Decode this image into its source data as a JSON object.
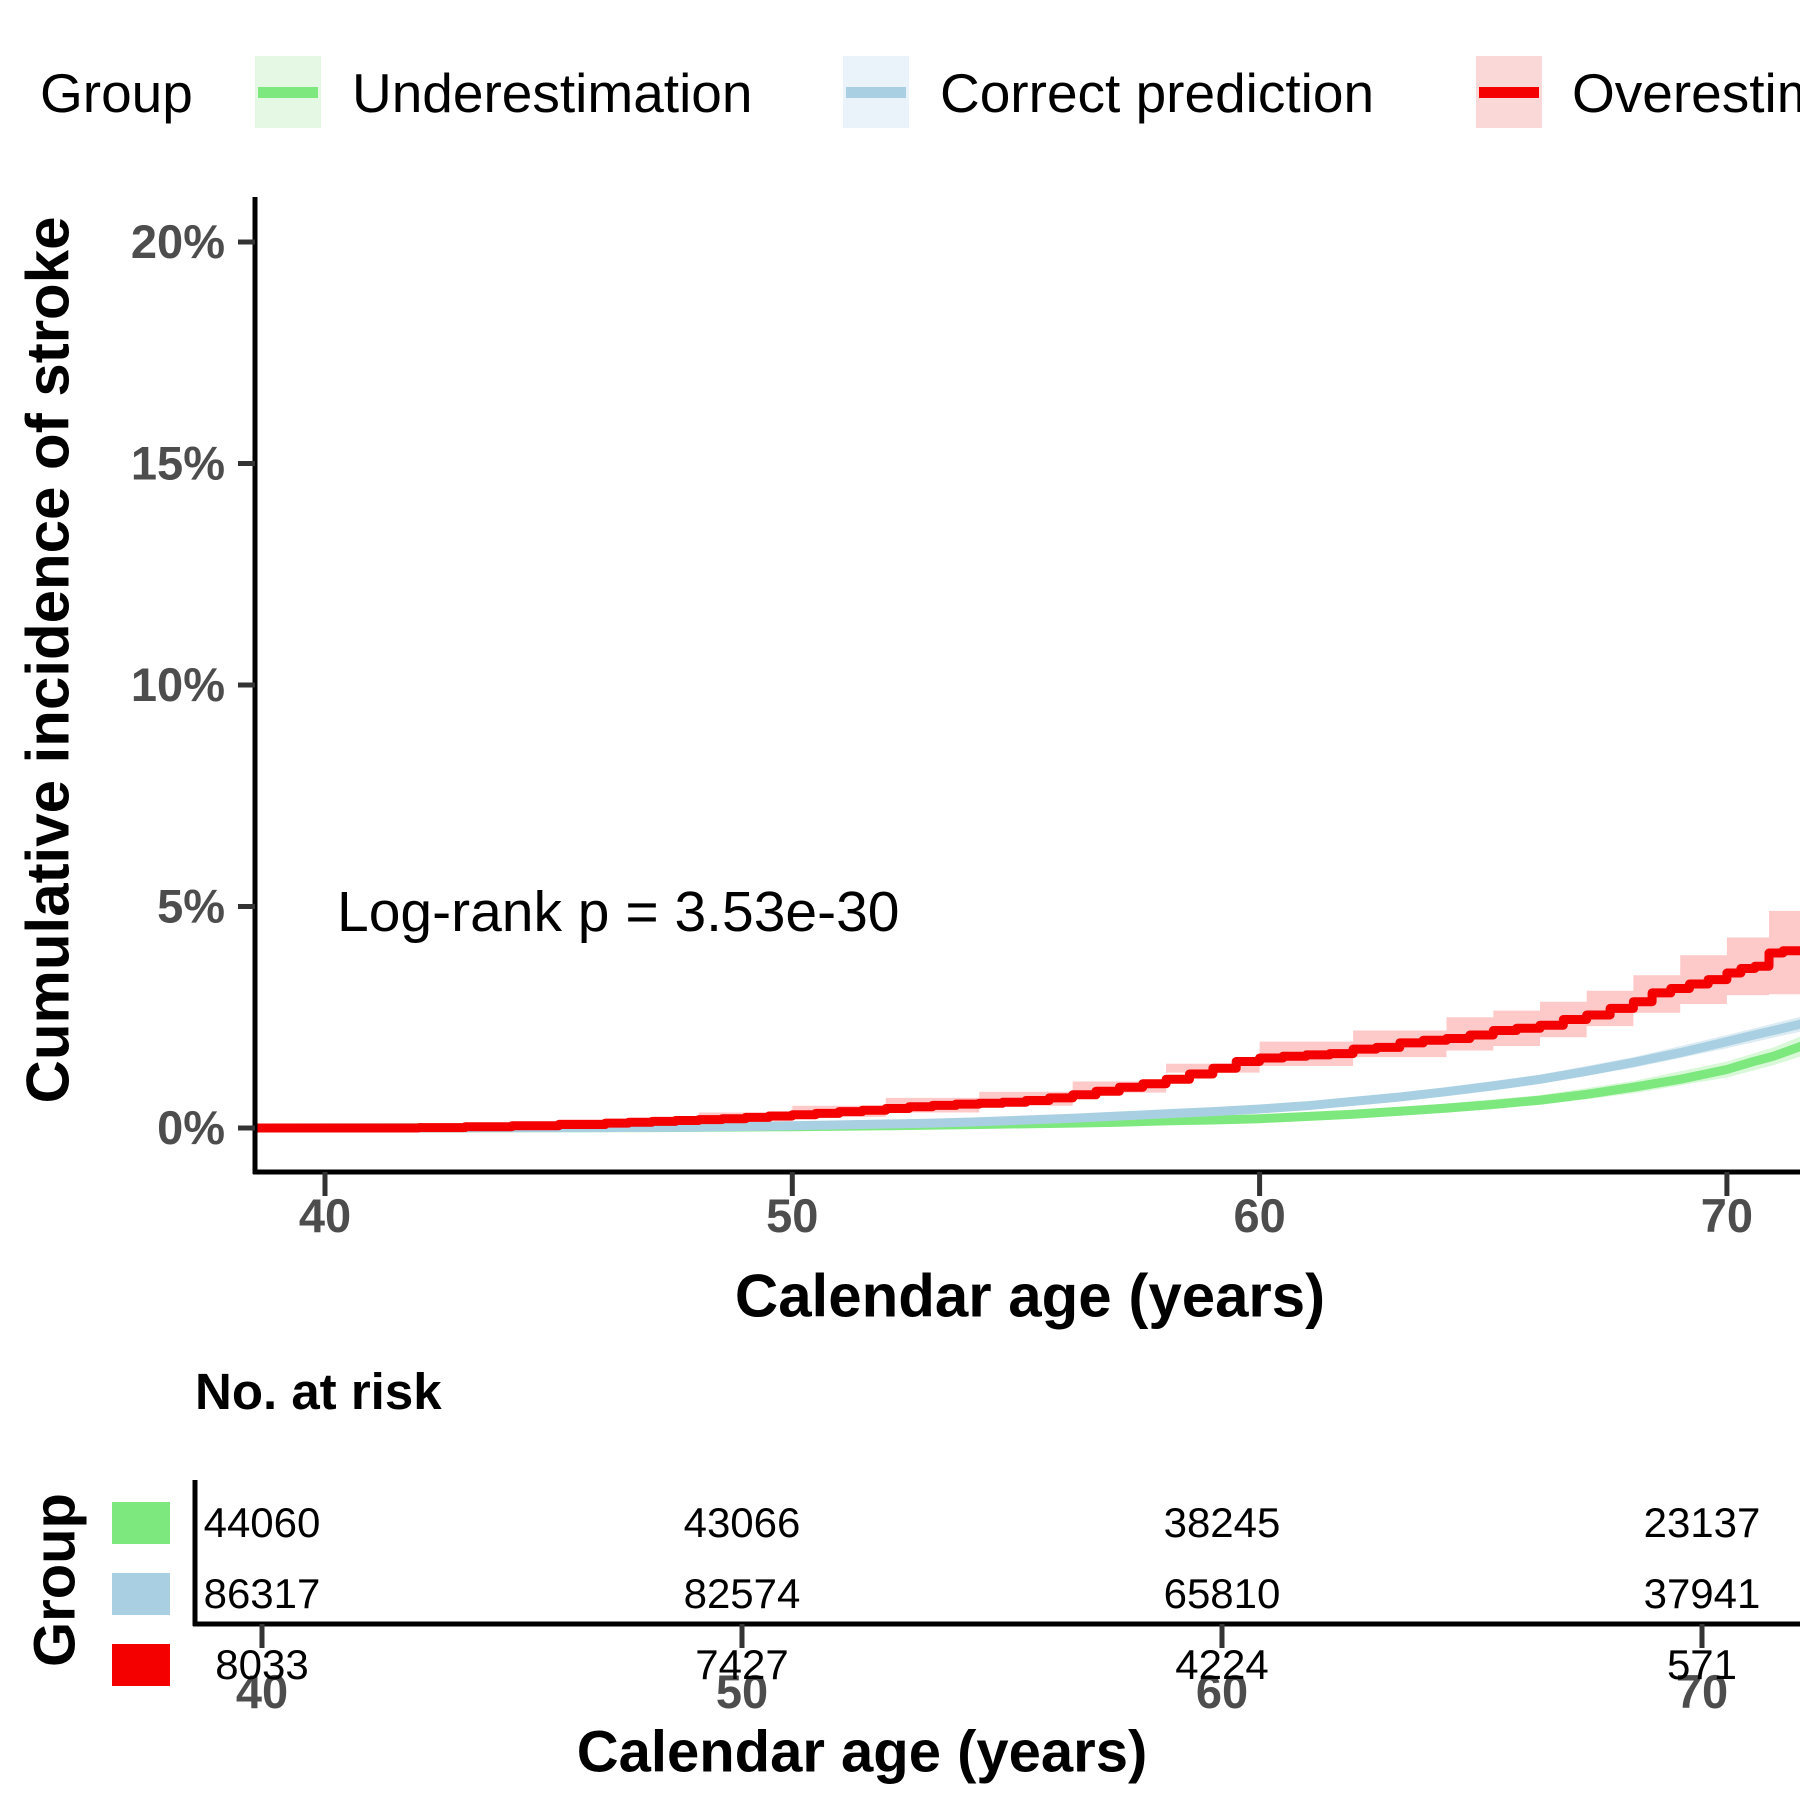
{
  "legend": {
    "title": "Group",
    "items": [
      {
        "id": "underestimation",
        "label": "Underestimation",
        "color": "#7DE87D",
        "bg": "#E4F8E4"
      },
      {
        "id": "correct-prediction",
        "label": "Correct prediction",
        "color": "#A9D0E2",
        "bg": "#EAF3F9"
      },
      {
        "id": "overestimation",
        "label": "Overestimation",
        "color": "#F40000",
        "bg": "#FBD8D8"
      }
    ]
  },
  "chart": {
    "y_title": "Cumulative incidence of stroke",
    "x_title": "Calendar age (years)",
    "annotation": "Log-rank p = 3.53e-30"
  },
  "chart_data": {
    "type": "line",
    "title": "",
    "xlabel": "Calendar age (years)",
    "ylabel": "Cumulative incidence of stroke",
    "x_range": [
      38.5,
      71.6
    ],
    "y_range_pct": [
      0,
      21
    ],
    "grid": false,
    "legend_position": "top",
    "annotation": "Log-rank p = 3.53e-30",
    "y_ticks": [
      {
        "label": "0%",
        "value": 0
      },
      {
        "label": "5%",
        "value": 5
      },
      {
        "label": "10%",
        "value": 10
      },
      {
        "label": "15%",
        "value": 15
      },
      {
        "label": "20%",
        "value": 20
      }
    ],
    "x_ticks": [
      {
        "label": "40",
        "value": 40
      },
      {
        "label": "50",
        "value": 50
      },
      {
        "label": "60",
        "value": 60
      },
      {
        "label": "70",
        "value": 70
      }
    ],
    "series": [
      {
        "name": "Underestimation",
        "color": "#7DE87D",
        "band_color": "rgba(125,232,125,0.30)",
        "step": false,
        "points": [
          [
            38.5,
            0
          ],
          [
            47,
            0.01
          ],
          [
            50,
            0.03
          ],
          [
            52,
            0.05
          ],
          [
            54,
            0.08
          ],
          [
            56,
            0.11
          ],
          [
            57,
            0.13
          ],
          [
            58,
            0.16
          ],
          [
            59,
            0.18
          ],
          [
            60,
            0.21
          ],
          [
            61,
            0.26
          ],
          [
            62,
            0.31
          ],
          [
            63,
            0.38
          ],
          [
            64,
            0.45
          ],
          [
            65,
            0.53
          ],
          [
            66,
            0.63
          ],
          [
            67,
            0.76
          ],
          [
            68,
            0.92
          ],
          [
            69,
            1.1
          ],
          [
            70,
            1.32
          ],
          [
            70.5,
            1.48
          ],
          [
            71,
            1.62
          ],
          [
            71.6,
            1.85
          ]
        ],
        "band": [
          [
            60,
            0.15,
            0.27
          ],
          [
            63,
            0.3,
            0.46
          ],
          [
            66,
            0.52,
            0.74
          ],
          [
            68,
            0.78,
            1.06
          ],
          [
            70,
            1.14,
            1.5
          ],
          [
            71,
            1.42,
            1.82
          ],
          [
            71.6,
            1.62,
            2.08
          ]
        ]
      },
      {
        "name": "Correct prediction",
        "color": "#A9D0E2",
        "band_color": "rgba(169,208,226,0.40)",
        "step": false,
        "points": [
          [
            38.5,
            0
          ],
          [
            46,
            0.01
          ],
          [
            48,
            0.02
          ],
          [
            50,
            0.05
          ],
          [
            51,
            0.07
          ],
          [
            52,
            0.09
          ],
          [
            53,
            0.11
          ],
          [
            54,
            0.14
          ],
          [
            55,
            0.18
          ],
          [
            56,
            0.22
          ],
          [
            57,
            0.27
          ],
          [
            58,
            0.32
          ],
          [
            59,
            0.37
          ],
          [
            60,
            0.43
          ],
          [
            61,
            0.5
          ],
          [
            62,
            0.6
          ],
          [
            63,
            0.7
          ],
          [
            64,
            0.82
          ],
          [
            65,
            0.95
          ],
          [
            66,
            1.1
          ],
          [
            67,
            1.28
          ],
          [
            68,
            1.48
          ],
          [
            69,
            1.7
          ],
          [
            70,
            1.95
          ],
          [
            70.5,
            2.08
          ],
          [
            71,
            2.2
          ],
          [
            71.6,
            2.35
          ]
        ],
        "band": [
          [
            60,
            0.37,
            0.49
          ],
          [
            63,
            0.62,
            0.78
          ],
          [
            66,
            1.0,
            1.2
          ],
          [
            68,
            1.36,
            1.6
          ],
          [
            70,
            1.8,
            2.1
          ],
          [
            71,
            2.04,
            2.36
          ],
          [
            71.6,
            2.18,
            2.52
          ]
        ]
      },
      {
        "name": "Overestimation",
        "color": "#F40000",
        "band_color": "rgba(244,0,0,0.21)",
        "step": true,
        "points": [
          [
            38.5,
            0
          ],
          [
            42,
            0.01
          ],
          [
            43,
            0.03
          ],
          [
            44,
            0.05
          ],
          [
            45,
            0.08
          ],
          [
            46,
            0.11
          ],
          [
            46.5,
            0.13
          ],
          [
            47,
            0.15
          ],
          [
            47.5,
            0.17
          ],
          [
            48,
            0.19
          ],
          [
            48.5,
            0.21
          ],
          [
            49,
            0.24
          ],
          [
            49.5,
            0.27
          ],
          [
            50,
            0.3
          ],
          [
            50.5,
            0.33
          ],
          [
            51,
            0.37
          ],
          [
            51.5,
            0.4
          ],
          [
            52,
            0.44
          ],
          [
            52.5,
            0.48
          ],
          [
            53,
            0.51
          ],
          [
            53.5,
            0.54
          ],
          [
            54,
            0.56
          ],
          [
            54.5,
            0.58
          ],
          [
            55,
            0.62
          ],
          [
            55.5,
            0.68
          ],
          [
            56,
            0.75
          ],
          [
            56.5,
            0.83
          ],
          [
            57,
            0.92
          ],
          [
            57.5,
            1.0
          ],
          [
            58,
            1.1
          ],
          [
            58.5,
            1.22
          ],
          [
            59,
            1.35
          ],
          [
            59.5,
            1.5
          ],
          [
            60,
            1.58
          ],
          [
            60.5,
            1.62
          ],
          [
            61,
            1.65
          ],
          [
            61.5,
            1.68
          ],
          [
            62,
            1.78
          ],
          [
            62.5,
            1.82
          ],
          [
            63,
            1.92
          ],
          [
            63.5,
            1.98
          ],
          [
            64,
            2.02
          ],
          [
            64.5,
            2.1
          ],
          [
            65,
            2.2
          ],
          [
            65.5,
            2.25
          ],
          [
            66,
            2.32
          ],
          [
            66.5,
            2.45
          ],
          [
            67,
            2.55
          ],
          [
            67.5,
            2.7
          ],
          [
            68,
            2.85
          ],
          [
            68.4,
            3.05
          ],
          [
            68.8,
            3.15
          ],
          [
            69.2,
            3.25
          ],
          [
            69.6,
            3.35
          ],
          [
            70,
            3.5
          ],
          [
            70.3,
            3.6
          ],
          [
            70.6,
            3.65
          ],
          [
            70.9,
            3.95
          ],
          [
            71.2,
            4.0
          ],
          [
            71.6,
            4.08
          ]
        ],
        "band": [
          [
            43,
            0.0,
            0.09
          ],
          [
            45,
            0.02,
            0.2
          ],
          [
            48,
            0.08,
            0.35
          ],
          [
            50,
            0.15,
            0.5
          ],
          [
            52,
            0.25,
            0.68
          ],
          [
            54,
            0.35,
            0.82
          ],
          [
            56,
            0.5,
            1.05
          ],
          [
            58,
            0.8,
            1.45
          ],
          [
            60,
            1.25,
            1.95
          ],
          [
            62,
            1.4,
            2.2
          ],
          [
            64,
            1.6,
            2.5
          ],
          [
            65,
            1.75,
            2.65
          ],
          [
            66,
            1.85,
            2.85
          ],
          [
            67,
            2.05,
            3.1
          ],
          [
            68,
            2.3,
            3.45
          ],
          [
            69,
            2.6,
            3.9
          ],
          [
            70,
            2.8,
            4.3
          ],
          [
            70.9,
            3.0,
            4.9
          ],
          [
            71.6,
            3.02,
            5.15
          ]
        ]
      }
    ]
  },
  "risk_table": {
    "title": "No. at risk",
    "y_label": "Group",
    "x_title": "Calendar age (years)",
    "x_ticks": [
      {
        "label": "40",
        "value": 40
      },
      {
        "label": "50",
        "value": 50
      },
      {
        "label": "60",
        "value": 60
      },
      {
        "label": "70",
        "value": 70
      }
    ],
    "rows": [
      {
        "group": "Underestimation",
        "color": "#7DE87D",
        "counts": [
          "44060",
          "43066",
          "38245",
          "23137"
        ]
      },
      {
        "group": "Correct prediction",
        "color": "#A9D0E2",
        "counts": [
          "86317",
          "82574",
          "65810",
          "37941"
        ]
      },
      {
        "group": "Overestimation",
        "color": "#F40000",
        "counts": [
          "8033",
          "7427",
          "4224",
          "571"
        ]
      }
    ]
  }
}
